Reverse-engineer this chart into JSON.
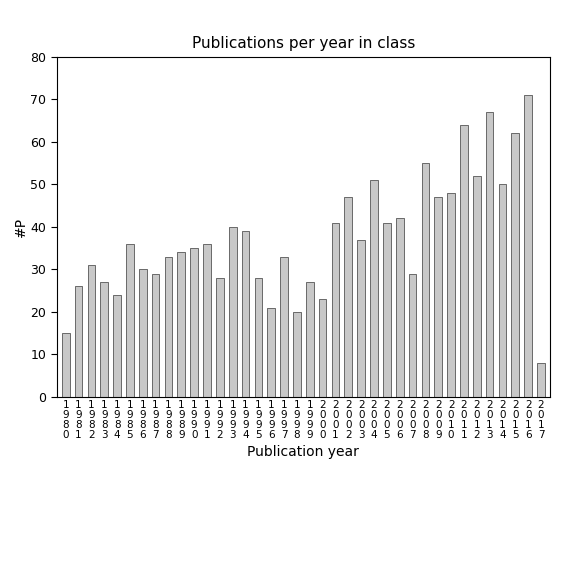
{
  "title": "Publications per year in class",
  "xlabel": "Publication year",
  "ylabel": "#P",
  "bar_color": "#c8c8c8",
  "bar_edgecolor": "#555555",
  "background_color": "#ffffff",
  "ylim": [
    0,
    80
  ],
  "yticks": [
    0,
    10,
    20,
    30,
    40,
    50,
    60,
    70,
    80
  ],
  "years": [
    1980,
    1981,
    1982,
    1983,
    1984,
    1985,
    1986,
    1987,
    1988,
    1989,
    1990,
    1991,
    1992,
    1993,
    1994,
    1995,
    1996,
    1997,
    1998,
    1999,
    2000,
    2001,
    2002,
    2003,
    2004,
    2005,
    2006,
    2007,
    2008,
    2009,
    2010,
    2011,
    2012,
    2013,
    2014,
    2015,
    2016,
    2017
  ],
  "values": [
    15,
    26,
    31,
    27,
    24,
    36,
    30,
    29,
    33,
    34,
    35,
    36,
    28,
    40,
    39,
    28,
    21,
    33,
    20,
    27,
    23,
    41,
    47,
    37,
    51,
    41,
    42,
    29,
    55,
    47,
    48,
    64,
    52,
    67,
    50,
    62,
    71,
    8
  ],
  "bar_width": 0.6,
  "tick_label_fontsize": 7.5,
  "axis_label_fontsize": 10,
  "title_fontsize": 11
}
